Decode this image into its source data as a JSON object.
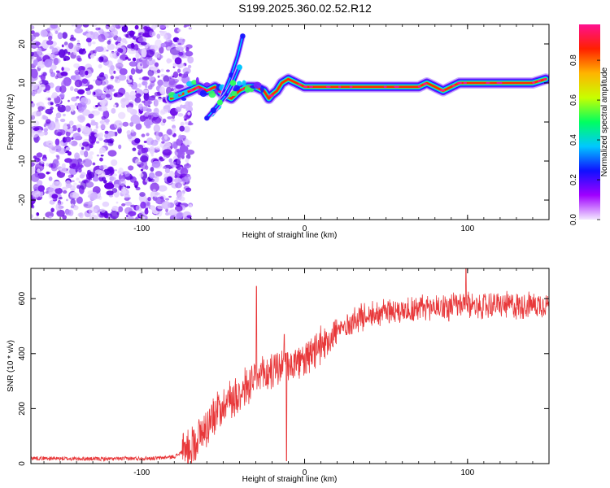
{
  "title": "S199.2025.360.02.52.R12",
  "colorbar": {
    "label": "Normalized spectral amplitude",
    "range": [
      0,
      0.98
    ],
    "ticks": [
      "0.0",
      "0.2",
      "0.4",
      "0.6",
      "0.8"
    ],
    "tick_values": [
      0,
      0.2,
      0.4,
      0.6,
      0.8
    ],
    "colors": [
      "#f3e8ff",
      "#a000ff",
      "#1010ff",
      "#00c8ff",
      "#00ff60",
      "#c8ff00",
      "#ffb400",
      "#ff2000",
      "#ff1090"
    ]
  },
  "chart_data": [
    {
      "type": "heatmap",
      "name": "spectrogram",
      "xlabel": "Height of straight line (km)",
      "ylabel": "Frequency (Hz)",
      "xlim": [
        -168,
        150
      ],
      "ylim": [
        -25,
        25
      ],
      "x_ticks": [
        -100,
        0,
        100
      ],
      "x_tick_labels": [
        "-100",
        "0",
        "100"
      ],
      "y_ticks": [
        -20,
        -10,
        0,
        10,
        20
      ],
      "y_tick_labels": [
        "-20",
        "-10",
        "0",
        "10",
        "20"
      ],
      "noise_region_x": [
        -168,
        -73
      ],
      "ridge": {
        "x": [
          -82,
          -76,
          -70,
          -65,
          -60,
          -55,
          -50,
          -45,
          -40,
          -35,
          -30,
          -25,
          -22,
          -20,
          -17,
          -14,
          -10,
          -5,
          0,
          5,
          10,
          20,
          40,
          60,
          70,
          75,
          80,
          85,
          90,
          95,
          100,
          110,
          120,
          130,
          140,
          148
        ],
        "y": [
          6,
          7,
          8,
          9,
          8,
          9,
          7,
          6,
          8,
          9,
          9,
          8,
          6,
          7,
          8,
          10,
          11,
          10,
          9,
          9,
          9,
          9,
          9,
          9,
          9,
          10,
          9,
          8,
          9,
          10,
          10,
          10,
          10,
          10,
          10,
          11
        ]
      },
      "branches": [
        {
          "x": [
            -57,
            -53,
            -49,
            -45,
            -41,
            -38
          ],
          "y": [
            2,
            4,
            8,
            12,
            17,
            22
          ]
        },
        {
          "x": [
            -60,
            -56,
            -52,
            -48,
            -44,
            -40
          ],
          "y": [
            1,
            3,
            5,
            7,
            10,
            14
          ]
        }
      ]
    },
    {
      "type": "line",
      "name": "snr",
      "xlabel": "Height of straight line (km)",
      "ylabel": "SNR (10 * v/v)",
      "xlim": [
        -168,
        150
      ],
      "ylim": [
        0,
        710
      ],
      "x_ticks": [
        -100,
        0,
        100
      ],
      "x_tick_labels": [
        "-100",
        "0",
        "100"
      ],
      "y_ticks": [
        0,
        200,
        400,
        600
      ],
      "y_tick_labels": [
        "0",
        "200",
        "400",
        "600"
      ],
      "color": "#e8383a",
      "trend": {
        "x": [
          -168,
          -150,
          -120,
          -90,
          -80,
          -70,
          -60,
          -50,
          -40,
          -30,
          -20,
          -10,
          0,
          10,
          20,
          30,
          40,
          60,
          80,
          100,
          120,
          150
        ],
        "y": [
          20,
          18,
          17,
          20,
          25,
          60,
          140,
          220,
          260,
          300,
          340,
          360,
          370,
          430,
          480,
          520,
          545,
          560,
          570,
          575,
          575,
          580
        ]
      },
      "spikes": [
        {
          "x": -29.5,
          "y": 645
        },
        {
          "x": -12.5,
          "y": 470
        },
        {
          "x": 99,
          "y": 715
        },
        {
          "x": -11,
          "y": 10
        }
      ]
    }
  ]
}
